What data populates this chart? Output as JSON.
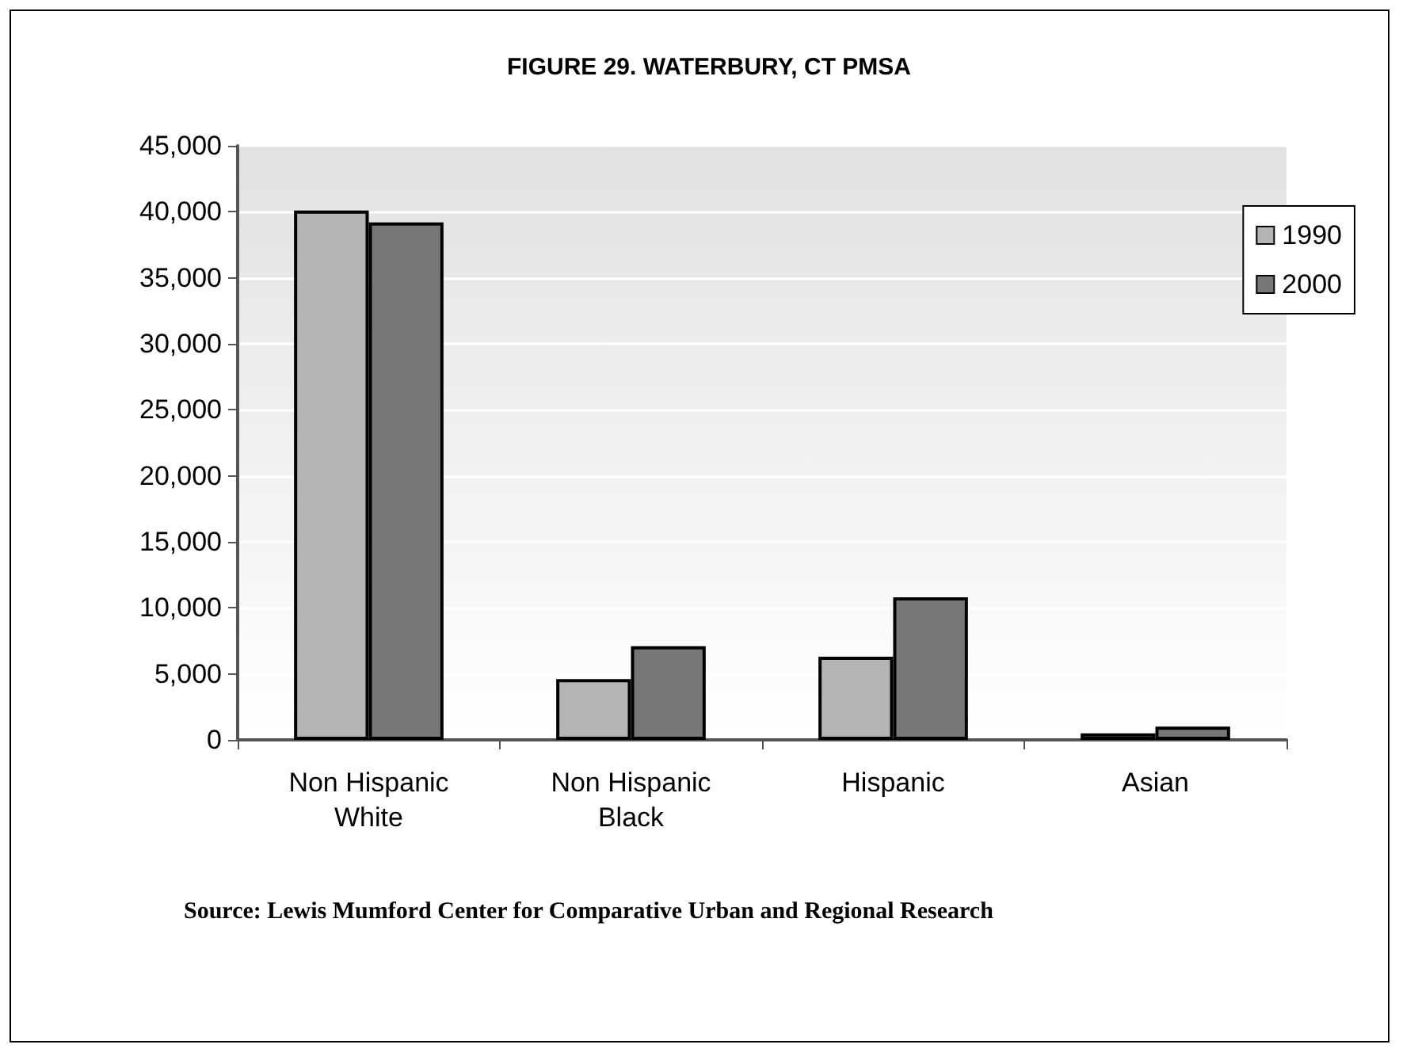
{
  "chart_data": {
    "type": "bar",
    "title": "FIGURE 29. WATERBURY, CT PMSA",
    "categories": [
      "Non Hispanic\nWhite",
      "Non Hispanic\nBlack",
      "Hispanic",
      "Asian"
    ],
    "series": [
      {
        "name": "1990",
        "color": "#b4b4b4",
        "values": [
          40100,
          4600,
          6300,
          500
        ]
      },
      {
        "name": "2000",
        "color": "#777777",
        "values": [
          39200,
          7100,
          10800,
          1000
        ]
      }
    ],
    "ylim": [
      0,
      45000
    ],
    "yticks": [
      0,
      {
        "value": 5000,
        "label": "5,000"
      },
      {
        "value": 10000,
        "label": "10,000"
      },
      {
        "value": 15000,
        "label": "15,000"
      },
      {
        "value": 20000,
        "label": "20,000"
      },
      {
        "value": 25000,
        "label": "25,000"
      },
      {
        "value": 30000,
        "label": "30,000"
      },
      {
        "value": 35000,
        "label": "35,000"
      },
      {
        "value": 40000,
        "label": "40,000"
      },
      {
        "value": 45000,
        "label": "45,000"
      }
    ],
    "grid": "y",
    "legend": "right",
    "annotations": [
      "Source: Lewis Mumford Center for Comparative Urban and Regional Research"
    ]
  }
}
